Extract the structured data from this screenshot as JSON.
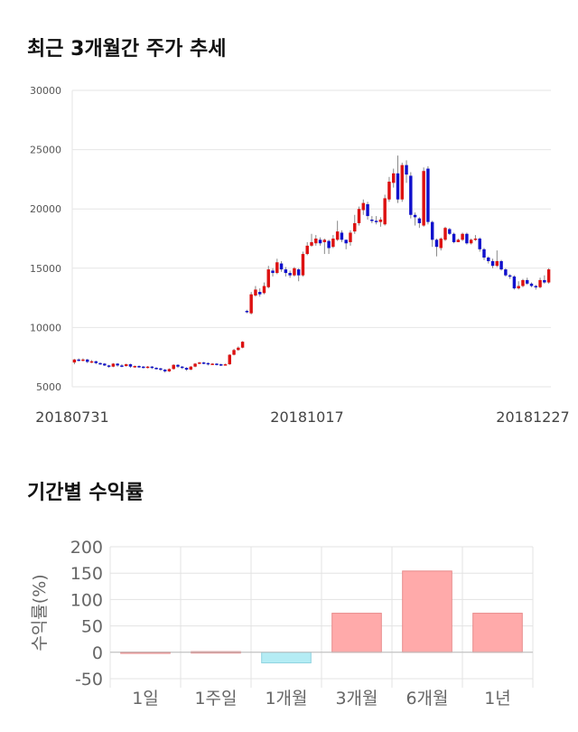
{
  "headings": {
    "price_trend": "최근 3개월간 주가 추세",
    "returns": "기간별 수익률"
  },
  "chart_data": [
    {
      "type": "candlestick",
      "title": "최근 3개월간 주가 추세",
      "ylim": [
        5000,
        30000
      ],
      "y_ticks": [
        5000,
        10000,
        15000,
        20000,
        25000,
        30000
      ],
      "x_tick_labels": [
        "20180731",
        "20181017",
        "20181227"
      ],
      "grid": true,
      "colors": {
        "up": "#dd1111",
        "down": "#1111cc",
        "wick": "#888888"
      },
      "candles": [
        [
          7050,
          7300,
          6900,
          7350
        ],
        [
          7300,
          7250,
          7150,
          7400
        ],
        [
          7250,
          7300,
          7150,
          7400
        ],
        [
          7300,
          7100,
          7000,
          7350
        ],
        [
          7100,
          7150,
          7000,
          7250
        ],
        [
          7150,
          7000,
          6900,
          7200
        ],
        [
          7000,
          6950,
          6850,
          7050
        ],
        [
          6950,
          6800,
          6750,
          7000
        ],
        [
          6800,
          6700,
          6600,
          6850
        ],
        [
          6700,
          6950,
          6650,
          7000
        ],
        [
          6950,
          6800,
          6700,
          7000
        ],
        [
          6800,
          6750,
          6650,
          6900
        ],
        [
          6750,
          6900,
          6700,
          6950
        ],
        [
          6900,
          6700,
          6600,
          6950
        ],
        [
          6700,
          6750,
          6600,
          6800
        ],
        [
          6750,
          6700,
          6600,
          6800
        ],
        [
          6700,
          6650,
          6550,
          6750
        ],
        [
          6650,
          6700,
          6550,
          6750
        ],
        [
          6700,
          6600,
          6500,
          6750
        ],
        [
          6600,
          6550,
          6450,
          6650
        ],
        [
          6550,
          6450,
          6350,
          6600
        ],
        [
          6450,
          6300,
          6200,
          6500
        ],
        [
          6300,
          6500,
          6250,
          6550
        ],
        [
          6500,
          6850,
          6450,
          6900
        ],
        [
          6850,
          6700,
          6600,
          6900
        ],
        [
          6700,
          6600,
          6500,
          6750
        ],
        [
          6600,
          6450,
          6350,
          6650
        ],
        [
          6450,
          6700,
          6400,
          6750
        ],
        [
          6700,
          6950,
          6650,
          7000
        ],
        [
          6950,
          7050,
          6900,
          7100
        ],
        [
          7050,
          7000,
          6900,
          7100
        ],
        [
          7000,
          6900,
          6800,
          7050
        ],
        [
          6900,
          6950,
          6850,
          7000
        ],
        [
          6950,
          6900,
          6800,
          7000
        ],
        [
          6900,
          6850,
          6750,
          6950
        ],
        [
          6850,
          6900,
          6800,
          6950
        ],
        [
          6900,
          7700,
          6850,
          7750
        ],
        [
          7700,
          8100,
          7650,
          8200
        ],
        [
          8100,
          8300,
          8050,
          8400
        ],
        [
          8300,
          8800,
          8250,
          8850
        ],
        [
          11400,
          11300,
          11200,
          11500
        ],
        [
          11200,
          12800,
          11100,
          13000
        ],
        [
          12700,
          13200,
          12600,
          13500
        ],
        [
          13000,
          12800,
          12600,
          13300
        ],
        [
          12900,
          13500,
          12800,
          13800
        ],
        [
          13400,
          14900,
          13300,
          15200
        ],
        [
          14800,
          14600,
          14300,
          15000
        ],
        [
          14600,
          15500,
          14500,
          15800
        ],
        [
          15400,
          14900,
          14700,
          15600
        ],
        [
          14900,
          14600,
          14300,
          15100
        ],
        [
          14600,
          14400,
          14200,
          14800
        ],
        [
          14400,
          15000,
          14300,
          15100
        ],
        [
          14900,
          14400,
          13900,
          15000
        ],
        [
          14400,
          16200,
          14300,
          16400
        ],
        [
          16200,
          16900,
          16100,
          17200
        ],
        [
          16900,
          17200,
          16800,
          17900
        ],
        [
          17100,
          17500,
          16900,
          17800
        ],
        [
          17400,
          17100,
          16900,
          17600
        ],
        [
          17200,
          17400,
          16200,
          17500
        ],
        [
          17300,
          16700,
          16200,
          17400
        ],
        [
          16800,
          17500,
          16700,
          17800
        ],
        [
          17400,
          18100,
          17300,
          19000
        ],
        [
          18000,
          17400,
          17200,
          18200
        ],
        [
          17400,
          17100,
          16600,
          17400
        ],
        [
          17200,
          18000,
          16900,
          18200
        ],
        [
          18100,
          18800,
          17900,
          19500
        ],
        [
          18800,
          20000,
          18600,
          20200
        ],
        [
          19900,
          20500,
          19500,
          20800
        ],
        [
          20400,
          19400,
          19100,
          20600
        ],
        [
          19100,
          19000,
          18800,
          19400
        ],
        [
          19000,
          18900,
          18700,
          19400
        ],
        [
          18900,
          19100,
          18500,
          19300
        ],
        [
          18700,
          20900,
          18600,
          21200
        ],
        [
          20800,
          22300,
          20600,
          22700
        ],
        [
          22200,
          23000,
          21800,
          23400
        ],
        [
          23000,
          20800,
          20500,
          24500
        ],
        [
          20800,
          23700,
          20600,
          23900
        ],
        [
          23700,
          22900,
          22200,
          24100
        ],
        [
          22800,
          19500,
          19200,
          23100
        ],
        [
          19500,
          19300,
          18600,
          19700
        ],
        [
          19200,
          18800,
          18400,
          19300
        ],
        [
          18600,
          23200,
          18500,
          23500
        ],
        [
          23400,
          18900,
          18700,
          23600
        ],
        [
          18900,
          17400,
          16800,
          19000
        ],
        [
          17400,
          16800,
          16000,
          17500
        ],
        [
          16700,
          17500,
          16500,
          17600
        ],
        [
          17400,
          18400,
          17300,
          18500
        ],
        [
          18300,
          17900,
          17800,
          18400
        ],
        [
          17900,
          17200,
          17100,
          18000
        ],
        [
          17200,
          17400,
          17200,
          17500
        ],
        [
          17400,
          17900,
          17300,
          18000
        ],
        [
          17900,
          17100,
          17000,
          18000
        ],
        [
          17100,
          17400,
          17000,
          17500
        ],
        [
          17400,
          17500,
          17300,
          17800
        ],
        [
          17500,
          16600,
          16400,
          17600
        ],
        [
          16600,
          15900,
          15700,
          16700
        ],
        [
          15900,
          15600,
          15400,
          16000
        ],
        [
          15600,
          15200,
          15000,
          15800
        ],
        [
          15200,
          15600,
          15100,
          16500
        ],
        [
          15600,
          14900,
          14800,
          15700
        ],
        [
          14900,
          14400,
          14300,
          15000
        ],
        [
          14400,
          14300,
          14100,
          14500
        ],
        [
          14300,
          13300,
          13200,
          14400
        ],
        [
          13300,
          13500,
          13200,
          13900
        ],
        [
          13500,
          14000,
          13400,
          14100
        ],
        [
          14000,
          13700,
          13600,
          14200
        ],
        [
          13700,
          13500,
          13400,
          13800
        ],
        [
          13500,
          13400,
          13200,
          13600
        ],
        [
          13400,
          14000,
          13300,
          14200
        ],
        [
          14000,
          13800,
          13700,
          14400
        ],
        [
          13800,
          14900,
          13700,
          15000
        ]
      ]
    },
    {
      "type": "bar",
      "title": "기간별 수익률",
      "ylabel": "수익률(%)",
      "ylim": [
        -50,
        200
      ],
      "y_ticks": [
        -50,
        0,
        50,
        100,
        150,
        200
      ],
      "grid": true,
      "categories": [
        "1일",
        "1주일",
        "1개월",
        "3개월",
        "6개월",
        "1년"
      ],
      "values": [
        0.5,
        1.2,
        -20,
        74,
        154,
        74
      ],
      "colors": {
        "positive": "#ffaaaa",
        "positive_border": "#e88a8a",
        "negative": "#b4ecf4",
        "negative_border": "#8fd3e0"
      }
    }
  ]
}
